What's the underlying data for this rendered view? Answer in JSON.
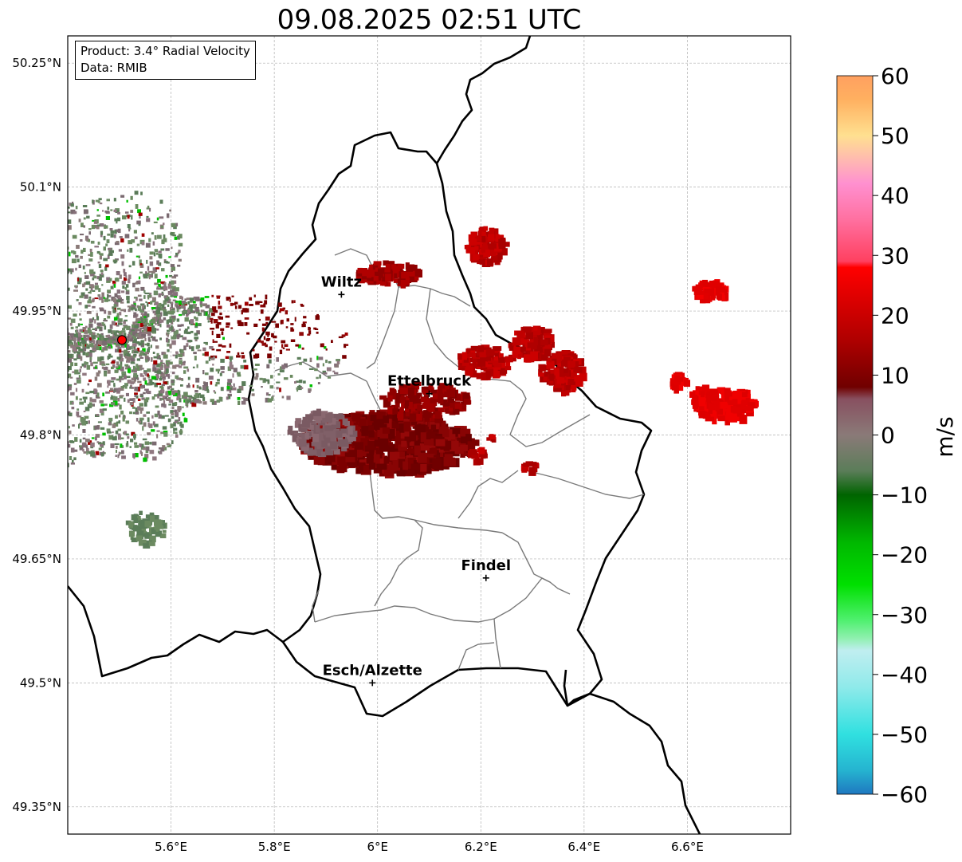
{
  "title": "09.08.2025 02:51 UTC",
  "info": {
    "product": "Product: 3.4° Radial Velocity",
    "data": "Data: RMIB"
  },
  "map": {
    "extent": {
      "lon_min": 5.4,
      "lon_max": 6.8,
      "lat_min": 49.317,
      "lat_max": 50.283
    },
    "lat_ticks": [
      {
        "value": 50.25,
        "label": "50.25°N"
      },
      {
        "value": 50.1,
        "label": "50.1°N"
      },
      {
        "value": 49.95,
        "label": "49.95°N"
      },
      {
        "value": 49.8,
        "label": "49.8°N"
      },
      {
        "value": 49.65,
        "label": "49.65°N"
      },
      {
        "value": 49.5,
        "label": "49.5°N"
      },
      {
        "value": 49.35,
        "label": "49.35°N"
      }
    ],
    "lon_ticks": [
      {
        "value": 5.6,
        "label": "5.6°E"
      },
      {
        "value": 5.8,
        "label": "5.8°E"
      },
      {
        "value": 6.0,
        "label": "6°E"
      },
      {
        "value": 6.2,
        "label": "6.2°E"
      },
      {
        "value": 6.4,
        "label": "6.4°E"
      },
      {
        "value": 6.6,
        "label": "6.6°E"
      }
    ],
    "cities": [
      {
        "name": "Wiltz",
        "lon": 5.93,
        "lat": 49.97
      },
      {
        "name": "Ettelbruck",
        "lon": 6.1,
        "lat": 49.85
      },
      {
        "name": "Findel",
        "lon": 6.21,
        "lat": 49.627
      },
      {
        "name": "Esch/Alzette",
        "lon": 5.99,
        "lat": 49.5
      }
    ],
    "radar_site": {
      "lon": 5.505,
      "lat": 49.915,
      "color": "#ff0000"
    }
  },
  "colorbar": {
    "unit": "m/s",
    "vmin": -60,
    "vmax": 60,
    "ticks": [
      {
        "value": 60,
        "label": "60"
      },
      {
        "value": 50,
        "label": "50"
      },
      {
        "value": 40,
        "label": "40"
      },
      {
        "value": 30,
        "label": "30"
      },
      {
        "value": 20,
        "label": "20"
      },
      {
        "value": 10,
        "label": "10"
      },
      {
        "value": 0,
        "label": "0"
      },
      {
        "value": -10,
        "label": "−10"
      },
      {
        "value": -20,
        "label": "−20"
      },
      {
        "value": -30,
        "label": "−30"
      },
      {
        "value": -40,
        "label": "−40"
      },
      {
        "value": -50,
        "label": "−50"
      },
      {
        "value": -60,
        "label": "−60"
      }
    ],
    "stops": [
      {
        "value": -60,
        "color": "#1f78c0"
      },
      {
        "value": -56,
        "color": "#25b4d0"
      },
      {
        "value": -50,
        "color": "#30e0e0"
      },
      {
        "value": -42,
        "color": "#90eaea"
      },
      {
        "value": -36,
        "color": "#c0eef0"
      },
      {
        "value": -34,
        "color": "#90f0b0"
      },
      {
        "value": -31,
        "color": "#50f070"
      },
      {
        "value": -25,
        "color": "#00e000"
      },
      {
        "value": -18,
        "color": "#00b800"
      },
      {
        "value": -10,
        "color": "#006400"
      },
      {
        "value": -6,
        "color": "#5b7d59"
      },
      {
        "value": 0,
        "color": "#8a7a78"
      },
      {
        "value": 6,
        "color": "#885060"
      },
      {
        "value": 8,
        "color": "#700000"
      },
      {
        "value": 16,
        "color": "#b00000"
      },
      {
        "value": 28,
        "color": "#ff0000"
      },
      {
        "value": 29,
        "color": "#ff4060"
      },
      {
        "value": 36,
        "color": "#ff70a0"
      },
      {
        "value": 42,
        "color": "#ff90d0"
      },
      {
        "value": 45,
        "color": "#ffb0b8"
      },
      {
        "value": 50,
        "color": "#ffe090"
      },
      {
        "value": 56,
        "color": "#ffb060"
      },
      {
        "value": 60,
        "color": "#ffa060"
      }
    ]
  }
}
